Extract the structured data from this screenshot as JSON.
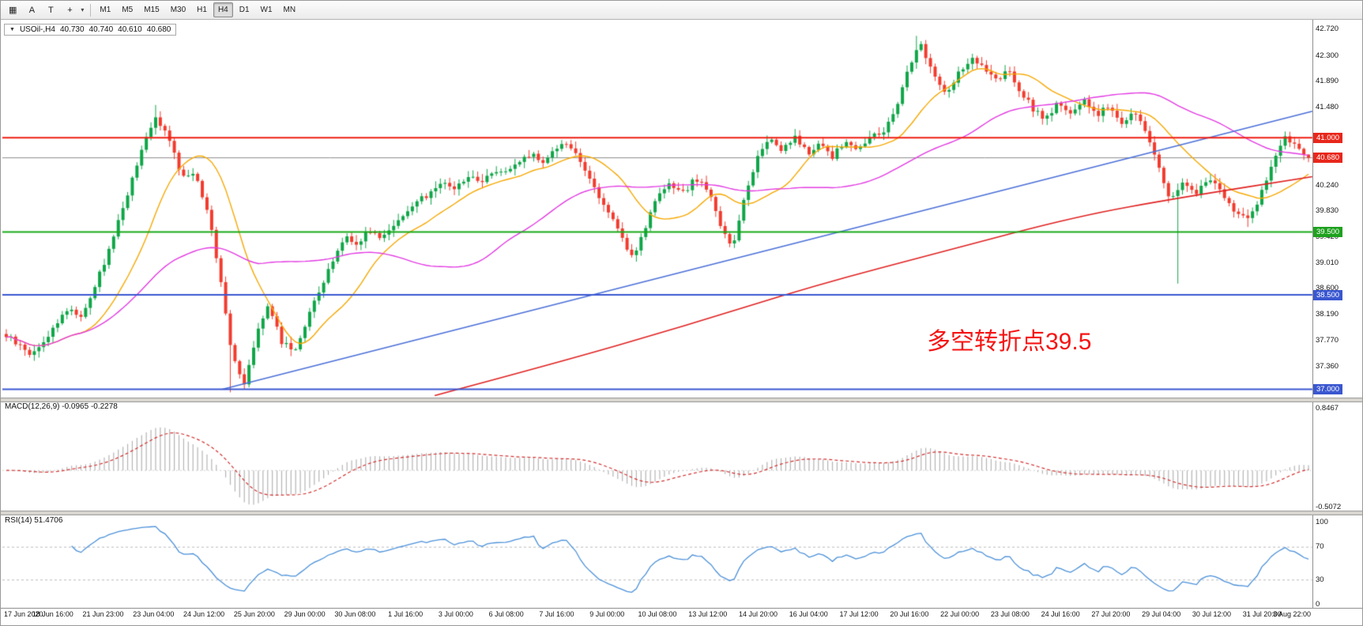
{
  "toolbar": {
    "tool_icons": [
      {
        "name": "grid-icon",
        "glyph": "▦"
      },
      {
        "name": "cursor-a-icon",
        "glyph": "A"
      },
      {
        "name": "text-tool-icon",
        "glyph": "T"
      },
      {
        "name": "crosshair-icon",
        "glyph": "+"
      }
    ],
    "dropdown_arrow": "▾",
    "timeframes": [
      "M1",
      "M5",
      "M15",
      "M30",
      "H1",
      "H4",
      "D1",
      "W1",
      "MN"
    ],
    "active_timeframe": "H4"
  },
  "chart": {
    "symbol_header": {
      "dropdown_glyph": "▼",
      "symbol": "USOil-,H4",
      "open": "40.730",
      "high": "40.740",
      "low": "40.610",
      "close": "40.680"
    },
    "annotation_text": "多空转折点39.5",
    "annotation_color": "#f61414"
  },
  "chart_data": {
    "type": "candlestick",
    "symbol": "USOil-",
    "timeframe": "H4",
    "ohlc": {
      "open": 40.73,
      "high": 40.74,
      "low": 40.61,
      "close": 40.68
    },
    "price_axis": {
      "min": 36.88,
      "max": 42.85,
      "ticks": [
        "42.720",
        "42.300",
        "41.890",
        "41.480",
        "40.240",
        "39.830",
        "39.420",
        "39.010",
        "38.600",
        "38.190",
        "37.770",
        "37.360",
        "36.940"
      ],
      "badges": [
        {
          "label": "41.000",
          "price": 41.0,
          "bg": "#e8271c"
        },
        {
          "label": "40.680",
          "price": 40.68,
          "bg": "#e8271c"
        },
        {
          "label": "39.500",
          "price": 39.5,
          "bg": "#1fa11f"
        },
        {
          "label": "38.500",
          "price": 38.5,
          "bg": "#3a57d0"
        },
        {
          "label": "37.000",
          "price": 37.0,
          "bg": "#3a57d0"
        }
      ]
    },
    "hlines": [
      {
        "price": 41.0,
        "color": "#ee1d12",
        "width": 2
      },
      {
        "price": 39.5,
        "color": "#18a818",
        "width": 2
      },
      {
        "price": 38.5,
        "color": "#3a57d0",
        "width": 2
      },
      {
        "price": 37.0,
        "color": "#3a57d0",
        "width": 2
      }
    ],
    "current_price_line": {
      "price": 40.68,
      "color": "#8a8a8a"
    },
    "trendline": {
      "from": [
        0.168,
        37.0
      ],
      "to": [
        1.0,
        41.42
      ],
      "color": "#4a6fd8"
    },
    "moving_averages": [
      {
        "name": "fast",
        "period": 16,
        "color": "#f6a800"
      },
      {
        "name": "medium",
        "period": 55,
        "color": "#e23ae2"
      }
    ],
    "slow_ma_color": "#e02020",
    "slow_ma_path": [
      [
        0.33,
        36.9
      ],
      [
        0.42,
        37.4
      ],
      [
        0.52,
        38.0
      ],
      [
        0.62,
        38.65
      ],
      [
        0.72,
        39.2
      ],
      [
        0.82,
        39.75
      ],
      [
        0.9,
        40.05
      ],
      [
        1.0,
        40.38
      ]
    ],
    "candles": {
      "count": 280,
      "up_color": "#0fa648",
      "down_color": "#f23b2e",
      "close_path": [
        37.85,
        37.7,
        37.55,
        37.75,
        38.05,
        38.3,
        38.15,
        38.6,
        39.1,
        39.7,
        40.3,
        40.9,
        41.35,
        40.95,
        40.4,
        40.45,
        39.9,
        38.9,
        37.6,
        37.1,
        37.9,
        38.35,
        37.75,
        37.6,
        38.1,
        38.55,
        39.0,
        39.45,
        39.3,
        39.55,
        39.4,
        39.65,
        39.8,
        40.0,
        40.15,
        40.3,
        40.2,
        40.4,
        40.3,
        40.5,
        40.45,
        40.6,
        40.75,
        40.6,
        40.85,
        40.9,
        40.55,
        40.2,
        39.85,
        39.45,
        39.1,
        39.55,
        40.05,
        40.25,
        40.1,
        40.35,
        40.2,
        39.6,
        39.25,
        40.1,
        40.7,
        41.0,
        40.8,
        41.0,
        40.75,
        40.9,
        40.7,
        40.95,
        40.8,
        41.0,
        41.1,
        41.4,
        42.1,
        42.5,
        42.05,
        41.7,
        42.0,
        42.25,
        42.1,
        41.9,
        42.05,
        41.75,
        41.45,
        41.3,
        41.55,
        41.4,
        41.6,
        41.35,
        41.5,
        41.25,
        41.4,
        41.1,
        40.55,
        40.0,
        40.3,
        40.1,
        40.35,
        40.15,
        39.85,
        39.7,
        40.0,
        40.55,
        41.0,
        40.85,
        40.68
      ],
      "special_wicks": [
        {
          "t": 0.115,
          "high": 41.52
        },
        {
          "t": 0.7,
          "high": 42.62
        },
        {
          "t": 0.172,
          "low": 36.95
        },
        {
          "t": 0.9,
          "low": 38.68
        },
        {
          "t": 0.955,
          "low": 39.58
        }
      ]
    },
    "x_labels": [
      "17 Jun 2020",
      "18 Jun 16:00",
      "21 Jun 23:00",
      "23 Jun 04:00",
      "24 Jun 12:00",
      "25 Jun 20:00",
      "29 Jun 00:00",
      "30 Jun 08:00",
      "1 Jul 16:00",
      "3 Jul 00:00",
      "6 Jul 08:00",
      "7 Jul 16:00",
      "9 Jul 00:00",
      "10 Jul 08:00",
      "13 Jul 12:00",
      "14 Jul 20:00",
      "16 Jul 04:00",
      "17 Jul 12:00",
      "20 Jul 16:00",
      "22 Jul 00:00",
      "23 Jul 08:00",
      "24 Jul 16:00",
      "27 Jul 20:00",
      "29 Jul 04:00",
      "30 Jul 12:00",
      "31 Jul 20:00",
      "3 Aug 22:00"
    ],
    "macd": {
      "label": "MACD(12,26,9) -0.0965 -0.2278",
      "fast": 12,
      "slow": 26,
      "signal_period": 9,
      "value": -0.0965,
      "signal": -0.2278,
      "axis_max": "0.8467",
      "axis_min": "-0.5072",
      "histogram_color": "#b4b4b4",
      "signal_color": "#d23030"
    },
    "rsi": {
      "label": "RSI(14) 51.4706",
      "period": 14,
      "value": 51.4706,
      "levels": [
        "100",
        "70",
        "30",
        "0"
      ],
      "level_lines": [
        70,
        30
      ],
      "color": "#4a90d9"
    }
  }
}
